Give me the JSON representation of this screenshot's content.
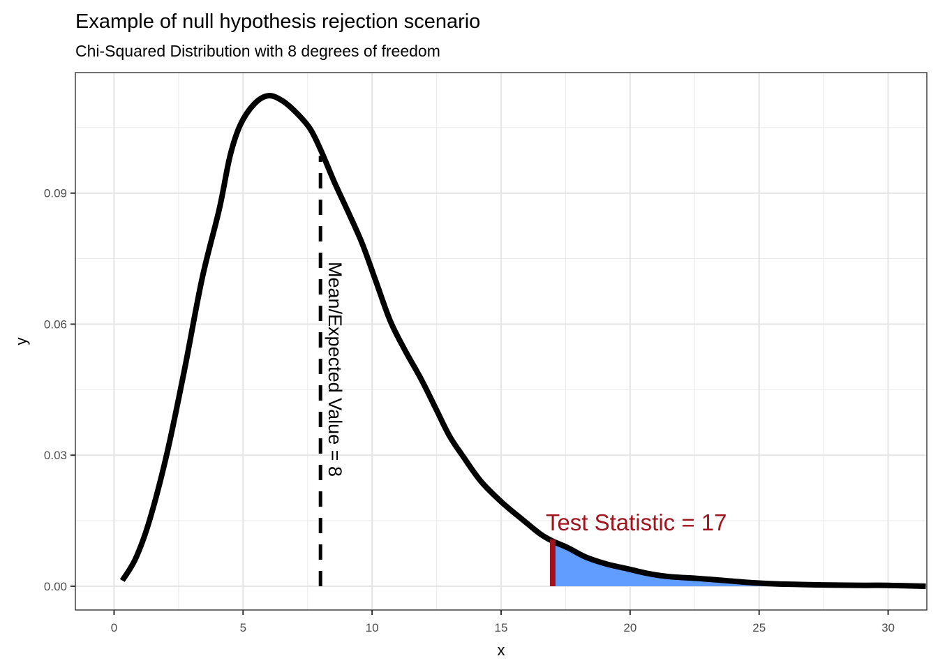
{
  "chart_data": {
    "type": "area",
    "title": "Example of null hypothesis rejection scenario",
    "subtitle": "Chi-Squared Distribution with 8 degrees of freedom",
    "xlabel": "x",
    "ylabel": "y",
    "xlim": [
      -1.5,
      31.5
    ],
    "ylim": [
      -0.00544,
      0.1176
    ],
    "x_ticks": [
      0,
      5,
      10,
      15,
      20,
      25,
      30
    ],
    "x_tick_labels": [
      "0",
      "5",
      "10",
      "15",
      "20",
      "25",
      "30"
    ],
    "y_ticks": [
      0.0,
      0.03,
      0.06,
      0.09
    ],
    "y_tick_labels": [
      "0.00",
      "0.03",
      "0.06",
      "0.09"
    ],
    "grid": true,
    "series": [
      {
        "name": "density",
        "x": [
          0.32,
          0.84,
          1.38,
          2.05,
          2.73,
          3.41,
          4.08,
          4.49,
          4.89,
          5.43,
          5.97,
          6.51,
          7.05,
          7.59,
          8.0,
          8.54,
          9.08,
          9.62,
          10.16,
          10.7,
          11.24,
          11.92,
          12.46,
          13.0,
          13.54,
          14.22,
          15.03,
          15.84,
          16.51,
          16.97,
          17.59,
          18.27,
          19.08,
          19.89,
          20.7,
          21.51,
          22.59,
          23.68,
          24.76,
          25.84,
          27.46,
          29.08,
          29.89,
          31.46
        ],
        "y": [
          0.0013,
          0.0064,
          0.0152,
          0.0304,
          0.0496,
          0.0704,
          0.0864,
          0.0984,
          0.1056,
          0.1104,
          0.1123,
          0.1112,
          0.1085,
          0.1048,
          0.1,
          0.0925,
          0.0856,
          0.0784,
          0.0696,
          0.0608,
          0.0544,
          0.0472,
          0.0408,
          0.0344,
          0.0296,
          0.024,
          0.0192,
          0.0152,
          0.012,
          0.0104,
          0.0088,
          0.0067,
          0.0051,
          0.004,
          0.0029,
          0.0022,
          0.0018,
          0.0013,
          0.0008,
          0.0005,
          0.0003,
          0.0002,
          0.0002,
          0.0
        ],
        "color": "#000000"
      }
    ],
    "rejection_region": {
      "from_x": 17,
      "fill_color": "#619cff"
    },
    "mean_line": {
      "x": 8,
      "y_top": 0.0985,
      "style": "dashed",
      "color": "#000000",
      "label": "Mean/Expected Value = 8"
    },
    "test_statistic": {
      "x": 17,
      "y_top": 0.0107,
      "color": "#a0141e",
      "label": "Test Statistic =  17"
    }
  }
}
